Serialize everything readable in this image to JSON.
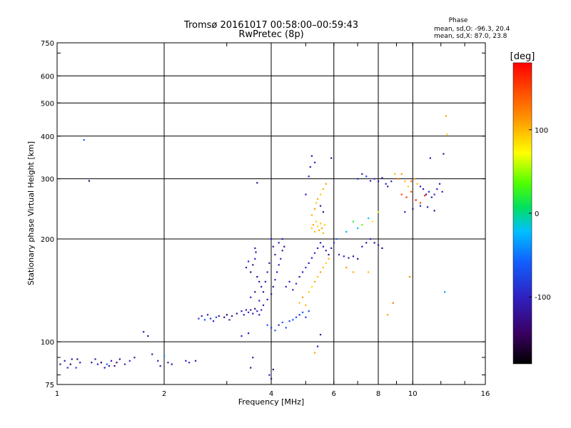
{
  "chart_data": {
    "type": "scatter",
    "title": "Tromsø 20161017 00:58:00–00:59:43",
    "subtitle": "RwPretec (8p)",
    "xlabel": "Frequency [MHz]",
    "ylabel": "Stationary phase Virtual Height [km]",
    "xscale": "log",
    "yscale": "log",
    "xlim": [
      1,
      16
    ],
    "ylim": [
      75,
      750
    ],
    "x_ticks": [
      1,
      2,
      4,
      6,
      8,
      10,
      16
    ],
    "y_ticks": [
      75,
      100,
      200,
      300,
      400,
      500,
      600,
      750
    ],
    "grid": true,
    "phase_stats": {
      "title": "Phase",
      "line_o": "mean, sd,O: -96.3, 20.4",
      "line_x": "mean, sd,X:  87.0, 23.8"
    },
    "colorbar": {
      "label": "[deg]",
      "range": [
        -180,
        180
      ],
      "ticks": [
        100,
        0,
        -100
      ]
    },
    "points": [
      [
        1.02,
        86,
        -120
      ],
      [
        1.05,
        88,
        -110
      ],
      [
        1.07,
        84,
        -100
      ],
      [
        1.09,
        86,
        -150
      ],
      [
        1.1,
        89,
        -120
      ],
      [
        1.13,
        84,
        -80
      ],
      [
        1.16,
        87,
        -100
      ],
      [
        1.14,
        89,
        -130
      ],
      [
        1.25,
        87,
        -130
      ],
      [
        1.28,
        89,
        -110
      ],
      [
        1.3,
        86,
        -100
      ],
      [
        1.33,
        87,
        -150
      ],
      [
        1.36,
        84,
        -120
      ],
      [
        1.38,
        86,
        -60
      ],
      [
        1.4,
        85,
        -110
      ],
      [
        1.42,
        88,
        -100
      ],
      [
        1.45,
        85,
        -130
      ],
      [
        1.47,
        87,
        -140
      ],
      [
        1.5,
        89,
        -120
      ],
      [
        1.55,
        86,
        -100
      ],
      [
        1.6,
        88,
        -90
      ],
      [
        1.65,
        90,
        -110
      ],
      [
        1.19,
        390,
        -60
      ],
      [
        1.23,
        296,
        -140
      ],
      [
        1.75,
        107,
        -110
      ],
      [
        1.8,
        104,
        -130
      ],
      [
        1.85,
        92,
        -120
      ],
      [
        1.92,
        88,
        -100
      ],
      [
        1.95,
        85,
        -110
      ],
      [
        2.0,
        91,
        -40
      ],
      [
        2.05,
        87,
        -110
      ],
      [
        2.1,
        86,
        -130
      ],
      [
        2.3,
        88,
        -100
      ],
      [
        2.35,
        87,
        -90
      ],
      [
        2.45,
        88,
        -110
      ],
      [
        2.5,
        117,
        -80
      ],
      [
        2.55,
        119,
        -100
      ],
      [
        2.6,
        116,
        -60
      ],
      [
        2.65,
        120,
        -110
      ],
      [
        2.7,
        117,
        -90
      ],
      [
        2.75,
        115,
        -100
      ],
      [
        2.8,
        118,
        -70
      ],
      [
        2.85,
        119,
        -120
      ],
      [
        2.95,
        118,
        -130
      ],
      [
        3.0,
        120,
        -150
      ],
      [
        3.05,
        116,
        -110
      ],
      [
        3.1,
        119,
        -120
      ],
      [
        3.2,
        121,
        -130
      ],
      [
        3.3,
        123,
        -100
      ],
      [
        3.35,
        120,
        -110
      ],
      [
        3.4,
        124,
        -100
      ],
      [
        3.45,
        122,
        -90
      ],
      [
        3.5,
        124,
        -110
      ],
      [
        3.55,
        121,
        -100
      ],
      [
        3.6,
        125,
        -120
      ],
      [
        3.65,
        123,
        -100
      ],
      [
        3.7,
        120,
        -110
      ],
      [
        3.75,
        124,
        -90
      ],
      [
        3.4,
        165,
        -110
      ],
      [
        3.45,
        172,
        -100
      ],
      [
        3.5,
        160,
        -120
      ],
      [
        3.55,
        168,
        -110
      ],
      [
        3.6,
        175,
        -100
      ],
      [
        3.65,
        155,
        -130
      ],
      [
        3.7,
        150,
        -110
      ],
      [
        3.75,
        145,
        -100
      ],
      [
        3.8,
        140,
        -120
      ],
      [
        3.85,
        150,
        -110
      ],
      [
        3.9,
        160,
        -100
      ],
      [
        3.95,
        170,
        -110
      ],
      [
        3.5,
        135,
        -100
      ],
      [
        3.6,
        140,
        -120
      ],
      [
        3.7,
        132,
        -90
      ],
      [
        3.8,
        128,
        -110
      ],
      [
        3.9,
        133,
        -100
      ],
      [
        4.0,
        138,
        -110
      ],
      [
        4.05,
        145,
        -120
      ],
      [
        4.1,
        152,
        -100
      ],
      [
        4.15,
        160,
        -110
      ],
      [
        4.2,
        168,
        -100
      ],
      [
        4.25,
        175,
        -90
      ],
      [
        4.3,
        185,
        -110
      ],
      [
        4.0,
        200,
        -100
      ],
      [
        4.05,
        190,
        -120
      ],
      [
        4.1,
        180,
        -110
      ],
      [
        4.2,
        195,
        -100
      ],
      [
        4.3,
        200,
        -110
      ],
      [
        4.35,
        190,
        -130
      ],
      [
        3.9,
        112,
        -60
      ],
      [
        4.0,
        110,
        -80
      ],
      [
        4.1,
        108,
        -70
      ],
      [
        4.2,
        112,
        -90
      ],
      [
        4.3,
        114,
        -60
      ],
      [
        4.4,
        110,
        -70
      ],
      [
        4.5,
        115,
        -80
      ],
      [
        4.6,
        116,
        -60
      ],
      [
        4.7,
        118,
        -70
      ],
      [
        4.8,
        120,
        -90
      ],
      [
        4.9,
        122,
        -60
      ],
      [
        5.0,
        118,
        -80
      ],
      [
        5.1,
        123,
        -70
      ],
      [
        3.6,
        188,
        -110
      ],
      [
        3.62,
        183,
        -120
      ],
      [
        3.3,
        104,
        -100
      ],
      [
        3.45,
        106,
        -110
      ],
      [
        3.5,
        84,
        -120
      ],
      [
        3.55,
        90,
        -110
      ],
      [
        3.95,
        80,
        -100
      ],
      [
        4.0,
        78,
        -120
      ],
      [
        4.05,
        83,
        -130
      ],
      [
        4.4,
        145,
        -100
      ],
      [
        4.5,
        150,
        -110
      ],
      [
        4.6,
        142,
        -100
      ],
      [
        4.7,
        148,
        -90
      ],
      [
        4.8,
        155,
        -110
      ],
      [
        4.9,
        160,
        -100
      ],
      [
        5.0,
        165,
        -90
      ],
      [
        5.1,
        170,
        -110
      ],
      [
        5.2,
        176,
        -100
      ],
      [
        5.3,
        182,
        -90
      ],
      [
        5.4,
        188,
        -110
      ],
      [
        5.5,
        195,
        -100
      ],
      [
        4.8,
        130,
        95
      ],
      [
        4.9,
        135,
        110
      ],
      [
        5.0,
        128,
        100
      ],
      [
        5.1,
        140,
        90
      ],
      [
        5.2,
        145,
        85
      ],
      [
        5.3,
        150,
        105
      ],
      [
        5.4,
        155,
        95
      ],
      [
        5.5,
        160,
        110
      ],
      [
        5.6,
        165,
        100
      ],
      [
        5.7,
        170,
        90
      ],
      [
        5.8,
        175,
        105
      ],
      [
        5.2,
        215,
        95
      ],
      [
        5.25,
        220,
        110
      ],
      [
        5.3,
        210,
        100
      ],
      [
        5.35,
        225,
        90
      ],
      [
        5.4,
        218,
        85
      ],
      [
        5.45,
        212,
        105
      ],
      [
        5.5,
        222,
        95
      ],
      [
        5.55,
        215,
        110
      ],
      [
        5.6,
        208,
        100
      ],
      [
        5.65,
        220,
        90
      ],
      [
        5.2,
        235,
        100
      ],
      [
        5.3,
        245,
        110
      ],
      [
        5.35,
        255,
        95
      ],
      [
        5.4,
        262,
        105
      ],
      [
        5.5,
        270,
        90
      ],
      [
        5.6,
        280,
        100
      ],
      [
        5.7,
        290,
        110
      ],
      [
        5.0,
        270,
        -110
      ],
      [
        5.1,
        305,
        -100
      ],
      [
        5.15,
        325,
        -110
      ],
      [
        5.2,
        350,
        -120
      ],
      [
        5.3,
        335,
        -100
      ],
      [
        5.5,
        250,
        -110
      ],
      [
        5.6,
        240,
        -120
      ],
      [
        5.6,
        190,
        -100
      ],
      [
        5.7,
        185,
        -110
      ],
      [
        5.8,
        180,
        -120
      ],
      [
        5.9,
        188,
        -100
      ],
      [
        6.0,
        195,
        -80
      ],
      [
        6.1,
        200,
        -60
      ],
      [
        6.2,
        180,
        -90
      ],
      [
        6.4,
        178,
        -100
      ],
      [
        6.6,
        176,
        -110
      ],
      [
        6.8,
        178,
        -120
      ],
      [
        7.0,
        175,
        -130
      ],
      [
        7.2,
        190,
        -110
      ],
      [
        7.4,
        195,
        -120
      ],
      [
        7.6,
        200,
        -100
      ],
      [
        7.8,
        195,
        -130
      ],
      [
        8.0,
        192,
        -110
      ],
      [
        8.2,
        188,
        -140
      ],
      [
        6.5,
        210,
        -30
      ],
      [
        6.8,
        225,
        20
      ],
      [
        7.0,
        215,
        -20
      ],
      [
        7.2,
        220,
        40
      ],
      [
        7.5,
        230,
        -10
      ],
      [
        7.7,
        225,
        80
      ],
      [
        8.0,
        240,
        60
      ],
      [
        7.0,
        300,
        -90
      ],
      [
        7.2,
        310,
        -100
      ],
      [
        7.4,
        305,
        -80
      ],
      [
        7.6,
        296,
        -110
      ],
      [
        7.8,
        300,
        -90
      ],
      [
        8.0,
        295,
        -100
      ],
      [
        8.2,
        302,
        -110
      ],
      [
        8.4,
        290,
        -100
      ],
      [
        8.5,
        285,
        -110
      ],
      [
        8.7,
        295,
        -100
      ],
      [
        8.9,
        310,
        100
      ],
      [
        9.1,
        300,
        120
      ],
      [
        9.3,
        310,
        110
      ],
      [
        9.5,
        295,
        100
      ],
      [
        9.7,
        285,
        90
      ],
      [
        9.9,
        295,
        130
      ],
      [
        10.1,
        300,
        110
      ],
      [
        10.3,
        290,
        100
      ],
      [
        10.5,
        285,
        -100
      ],
      [
        10.7,
        280,
        -110
      ],
      [
        10.9,
        270,
        -120
      ],
      [
        11.1,
        275,
        -100
      ],
      [
        11.3,
        265,
        -110
      ],
      [
        11.5,
        270,
        -90
      ],
      [
        11.7,
        280,
        -100
      ],
      [
        11.9,
        290,
        -110
      ],
      [
        12.1,
        275,
        -100
      ],
      [
        9.3,
        270,
        150
      ],
      [
        9.6,
        265,
        160
      ],
      [
        9.9,
        275,
        140
      ],
      [
        10.2,
        260,
        170
      ],
      [
        10.5,
        255,
        150
      ],
      [
        10.8,
        268,
        160
      ],
      [
        9.5,
        240,
        -110
      ],
      [
        10.0,
        245,
        -120
      ],
      [
        10.5,
        250,
        -100
      ],
      [
        11.0,
        248,
        -110
      ],
      [
        11.5,
        242,
        -130
      ],
      [
        12.4,
        458,
        110
      ],
      [
        12.5,
        405,
        90
      ],
      [
        12.2,
        355,
        -110
      ],
      [
        11.2,
        345,
        -100
      ],
      [
        12.3,
        140,
        -40
      ],
      [
        9.8,
        155,
        120
      ],
      [
        8.5,
        120,
        110
      ],
      [
        8.8,
        130,
        130
      ],
      [
        6.5,
        165,
        110
      ],
      [
        6.8,
        160,
        105
      ],
      [
        7.5,
        160,
        100
      ],
      [
        5.9,
        345,
        -120
      ],
      [
        3.65,
        292,
        -120
      ],
      [
        5.3,
        93,
        110
      ],
      [
        5.4,
        97,
        -100
      ],
      [
        5.5,
        105,
        -110
      ]
    ]
  }
}
